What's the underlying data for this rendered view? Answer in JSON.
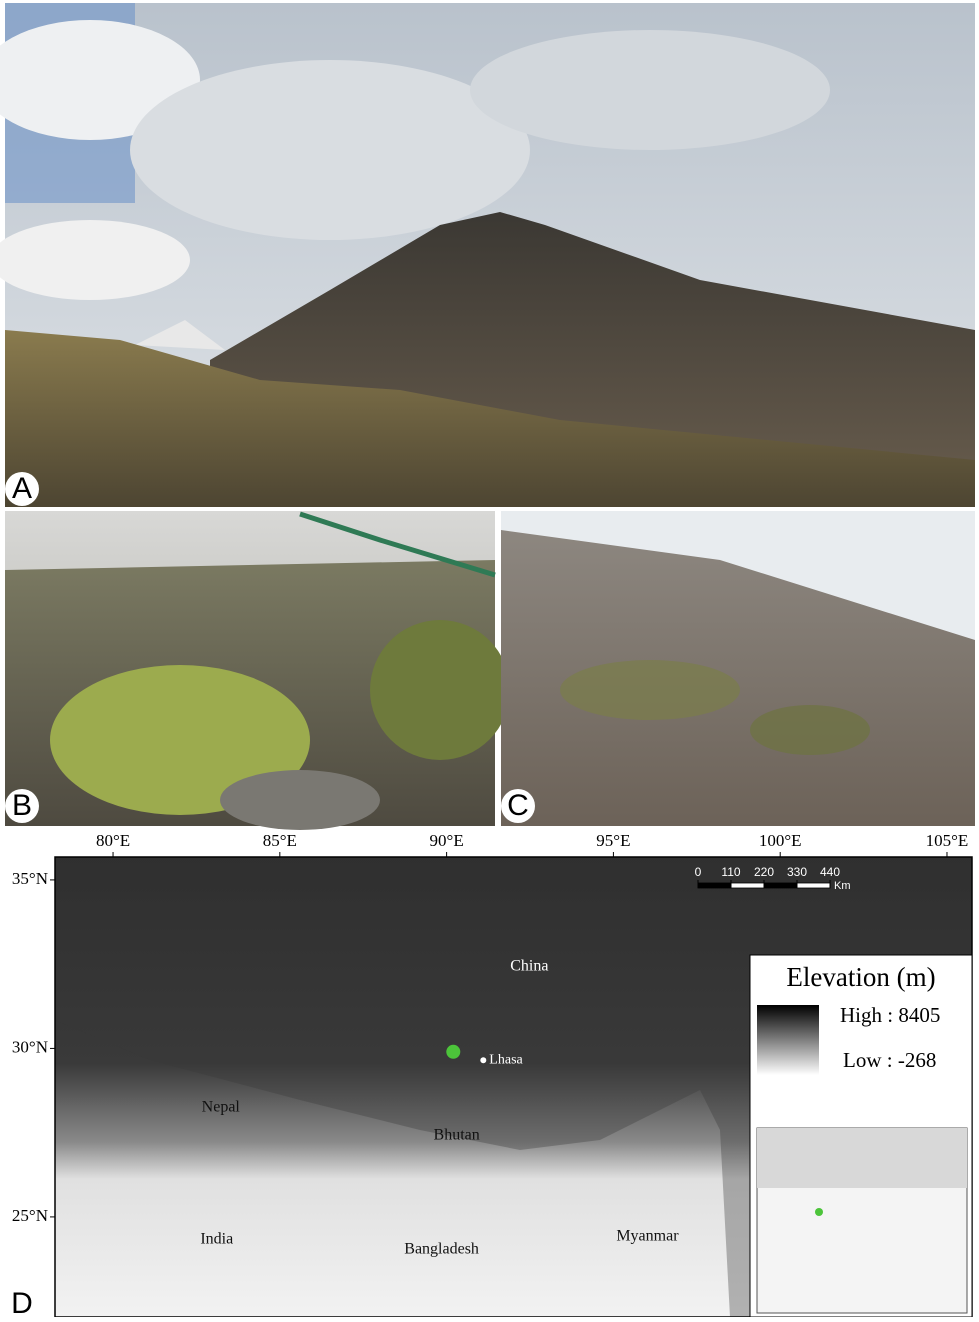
{
  "panel_labels": [
    "A",
    "B",
    "C",
    "D"
  ],
  "map": {
    "xlim": [
      78.26,
      105.75
    ],
    "ylim": [
      22.03,
      35.68
    ],
    "lon_ticks": [
      {
        "value": 80,
        "label": "80°E"
      },
      {
        "value": 85,
        "label": "85°E"
      },
      {
        "value": 90,
        "label": "90°E"
      },
      {
        "value": 95,
        "label": "95°E"
      },
      {
        "value": 100,
        "label": "100°E"
      },
      {
        "value": 105,
        "label": "105°E"
      }
    ],
    "lat_ticks": [
      {
        "value": 35,
        "label": "35°N"
      },
      {
        "value": 30,
        "label": "30°N"
      },
      {
        "value": 25,
        "label": "25°N"
      }
    ],
    "scale_bar": {
      "ticks": [
        0,
        110,
        220,
        330,
        440
      ],
      "unit": "Km"
    },
    "legend": {
      "title": "Elevation (m)",
      "high": "High : 8405",
      "low": "Low : -268"
    },
    "places": [
      {
        "name": "China",
        "lon": 92.48,
        "lat": 32.42
      },
      {
        "name": "Nepal",
        "lon": 83.23,
        "lat": 28.23
      },
      {
        "name": "Bhutan",
        "lon": 90.3,
        "lat": 27.4
      },
      {
        "name": "India",
        "lon": 83.11,
        "lat": 24.32
      },
      {
        "name": "Bangladesh",
        "lon": 89.85,
        "lat": 24.02
      },
      {
        "name": "Myanmar",
        "lon": 96.02,
        "lat": 24.41
      }
    ],
    "site": {
      "lon": 90.2,
      "lat": 29.9
    },
    "city": {
      "name": "Lhasa",
      "lon": 91.1,
      "lat": 29.65
    }
  }
}
